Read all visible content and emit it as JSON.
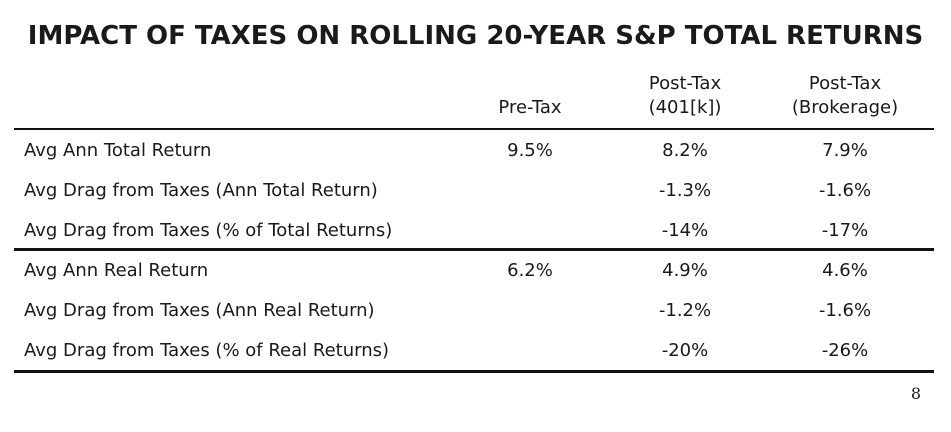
{
  "title": "IMPACT OF TAXES ON ROLLING 20-YEAR S&P TOTAL RETURNS",
  "columns": [
    {
      "line1": "",
      "line2": "Pre-Tax"
    },
    {
      "line1": "Post-Tax",
      "line2": "(401[k])"
    },
    {
      "line1": "Post-Tax",
      "line2": "(Brokerage)"
    }
  ],
  "rows": [
    {
      "label": "Avg Ann Total Return",
      "values": [
        "9.5%",
        "8.2%",
        "7.9%"
      ]
    },
    {
      "label": "Avg Drag from Taxes (Ann Total Return)",
      "values": [
        "",
        "-1.3%",
        "-1.6%"
      ]
    },
    {
      "label": "Avg Drag from Taxes (% of Total Returns)",
      "values": [
        "",
        "-14%",
        "-17%"
      ]
    },
    {
      "label": "Avg Ann Real Return",
      "values": [
        "6.2%",
        "4.9%",
        "4.6%"
      ]
    },
    {
      "label": "Avg Drag from Taxes (Ann Real Return)",
      "values": [
        "",
        "-1.2%",
        "-1.6%"
      ]
    },
    {
      "label": "Avg Drag from Taxes (% of Real Returns)",
      "values": [
        "",
        "-20%",
        "-26%"
      ]
    }
  ],
  "page_number": "8"
}
